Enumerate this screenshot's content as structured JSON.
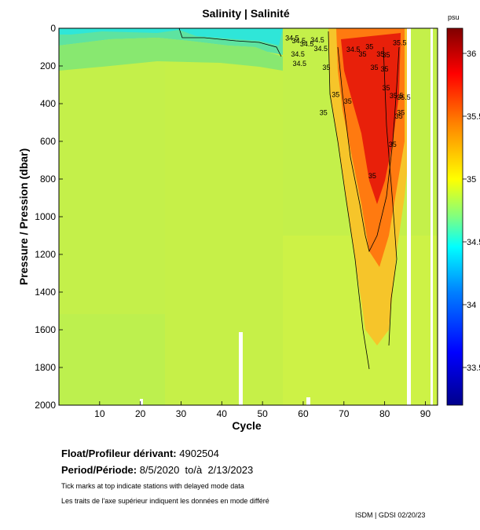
{
  "chart_data": {
    "type": "heatmap",
    "title": "Salinity | Salinité",
    "xlabel": "Cycle",
    "ylabel": "Pressure / Pression (dbar)",
    "xlim": [
      0,
      93
    ],
    "ylim": [
      2000,
      0
    ],
    "x_ticks": [
      10,
      20,
      30,
      40,
      50,
      60,
      70,
      80,
      90
    ],
    "y_ticks": [
      0,
      200,
      400,
      600,
      800,
      1000,
      1200,
      1400,
      1600,
      1800,
      2000
    ],
    "colorbar": {
      "unit": "psu",
      "range": [
        33.2,
        36.2
      ],
      "ticks": [
        33.5,
        34,
        34.5,
        35,
        35.5,
        36
      ],
      "tick_labels": [
        "33.5",
        "34",
        "34.5",
        "35",
        "35.5",
        "36"
      ],
      "colors": [
        "#00008b",
        "#0000ff",
        "#0080ff",
        "#00ffff",
        "#80ff80",
        "#ffff00",
        "#ff8000",
        "#ff0000",
        "#800000"
      ]
    },
    "contour_labels": [
      {
        "cycle": 55.6,
        "pressure": 65,
        "text": "34.5"
      },
      {
        "cycle": 57.2,
        "pressure": 80,
        "text": "34.5"
      },
      {
        "cycle": 59.2,
        "pressure": 95,
        "text": "34.5"
      },
      {
        "cycle": 61.8,
        "pressure": 75,
        "text": "34.5"
      },
      {
        "cycle": 57.0,
        "pressure": 150,
        "text": "34.5"
      },
      {
        "cycle": 57.4,
        "pressure": 200,
        "text": "34.5"
      },
      {
        "cycle": 62.6,
        "pressure": 120,
        "text": "34.5"
      },
      {
        "cycle": 70.6,
        "pressure": 125,
        "text": "34.5"
      },
      {
        "cycle": 75.3,
        "pressure": 110,
        "text": "35"
      },
      {
        "cycle": 73.6,
        "pressure": 150,
        "text": "35"
      },
      {
        "cycle": 78.0,
        "pressure": 150,
        "text": "35"
      },
      {
        "cycle": 79.4,
        "pressure": 155,
        "text": "35"
      },
      {
        "cycle": 82.0,
        "pressure": 90,
        "text": "35.5"
      },
      {
        "cycle": 64.7,
        "pressure": 220,
        "text": "35"
      },
      {
        "cycle": 76.5,
        "pressure": 220,
        "text": "35"
      },
      {
        "cycle": 79.0,
        "pressure": 230,
        "text": "35"
      },
      {
        "cycle": 79.4,
        "pressure": 330,
        "text": "35"
      },
      {
        "cycle": 81.2,
        "pressure": 370,
        "text": "35.5"
      },
      {
        "cycle": 83.0,
        "pressure": 380,
        "text": "35.5"
      },
      {
        "cycle": 67.0,
        "pressure": 365,
        "text": "35"
      },
      {
        "cycle": 70.0,
        "pressure": 400,
        "text": "35"
      },
      {
        "cycle": 64.0,
        "pressure": 460,
        "text": "35"
      },
      {
        "cycle": 83.0,
        "pressure": 460,
        "text": "35"
      },
      {
        "cycle": 82.5,
        "pressure": 480,
        "text": "35"
      },
      {
        "cycle": 81.0,
        "pressure": 630,
        "text": "35"
      },
      {
        "cycle": 76.0,
        "pressure": 795,
        "text": "35"
      }
    ]
  },
  "info": {
    "float_label": "Float/Profileur dérivant:",
    "float_value": "4902504",
    "period_label": "Period/Période:",
    "period_value": "8/5/2020  to/à  2/13/2023",
    "note_en": "Tick marks at top indicate stations with delayed mode data",
    "note_fr": "Les traits de l'axe supérieur indiquent les données en mode différé"
  },
  "footer": "ISDM | GDSI  02/20/23"
}
